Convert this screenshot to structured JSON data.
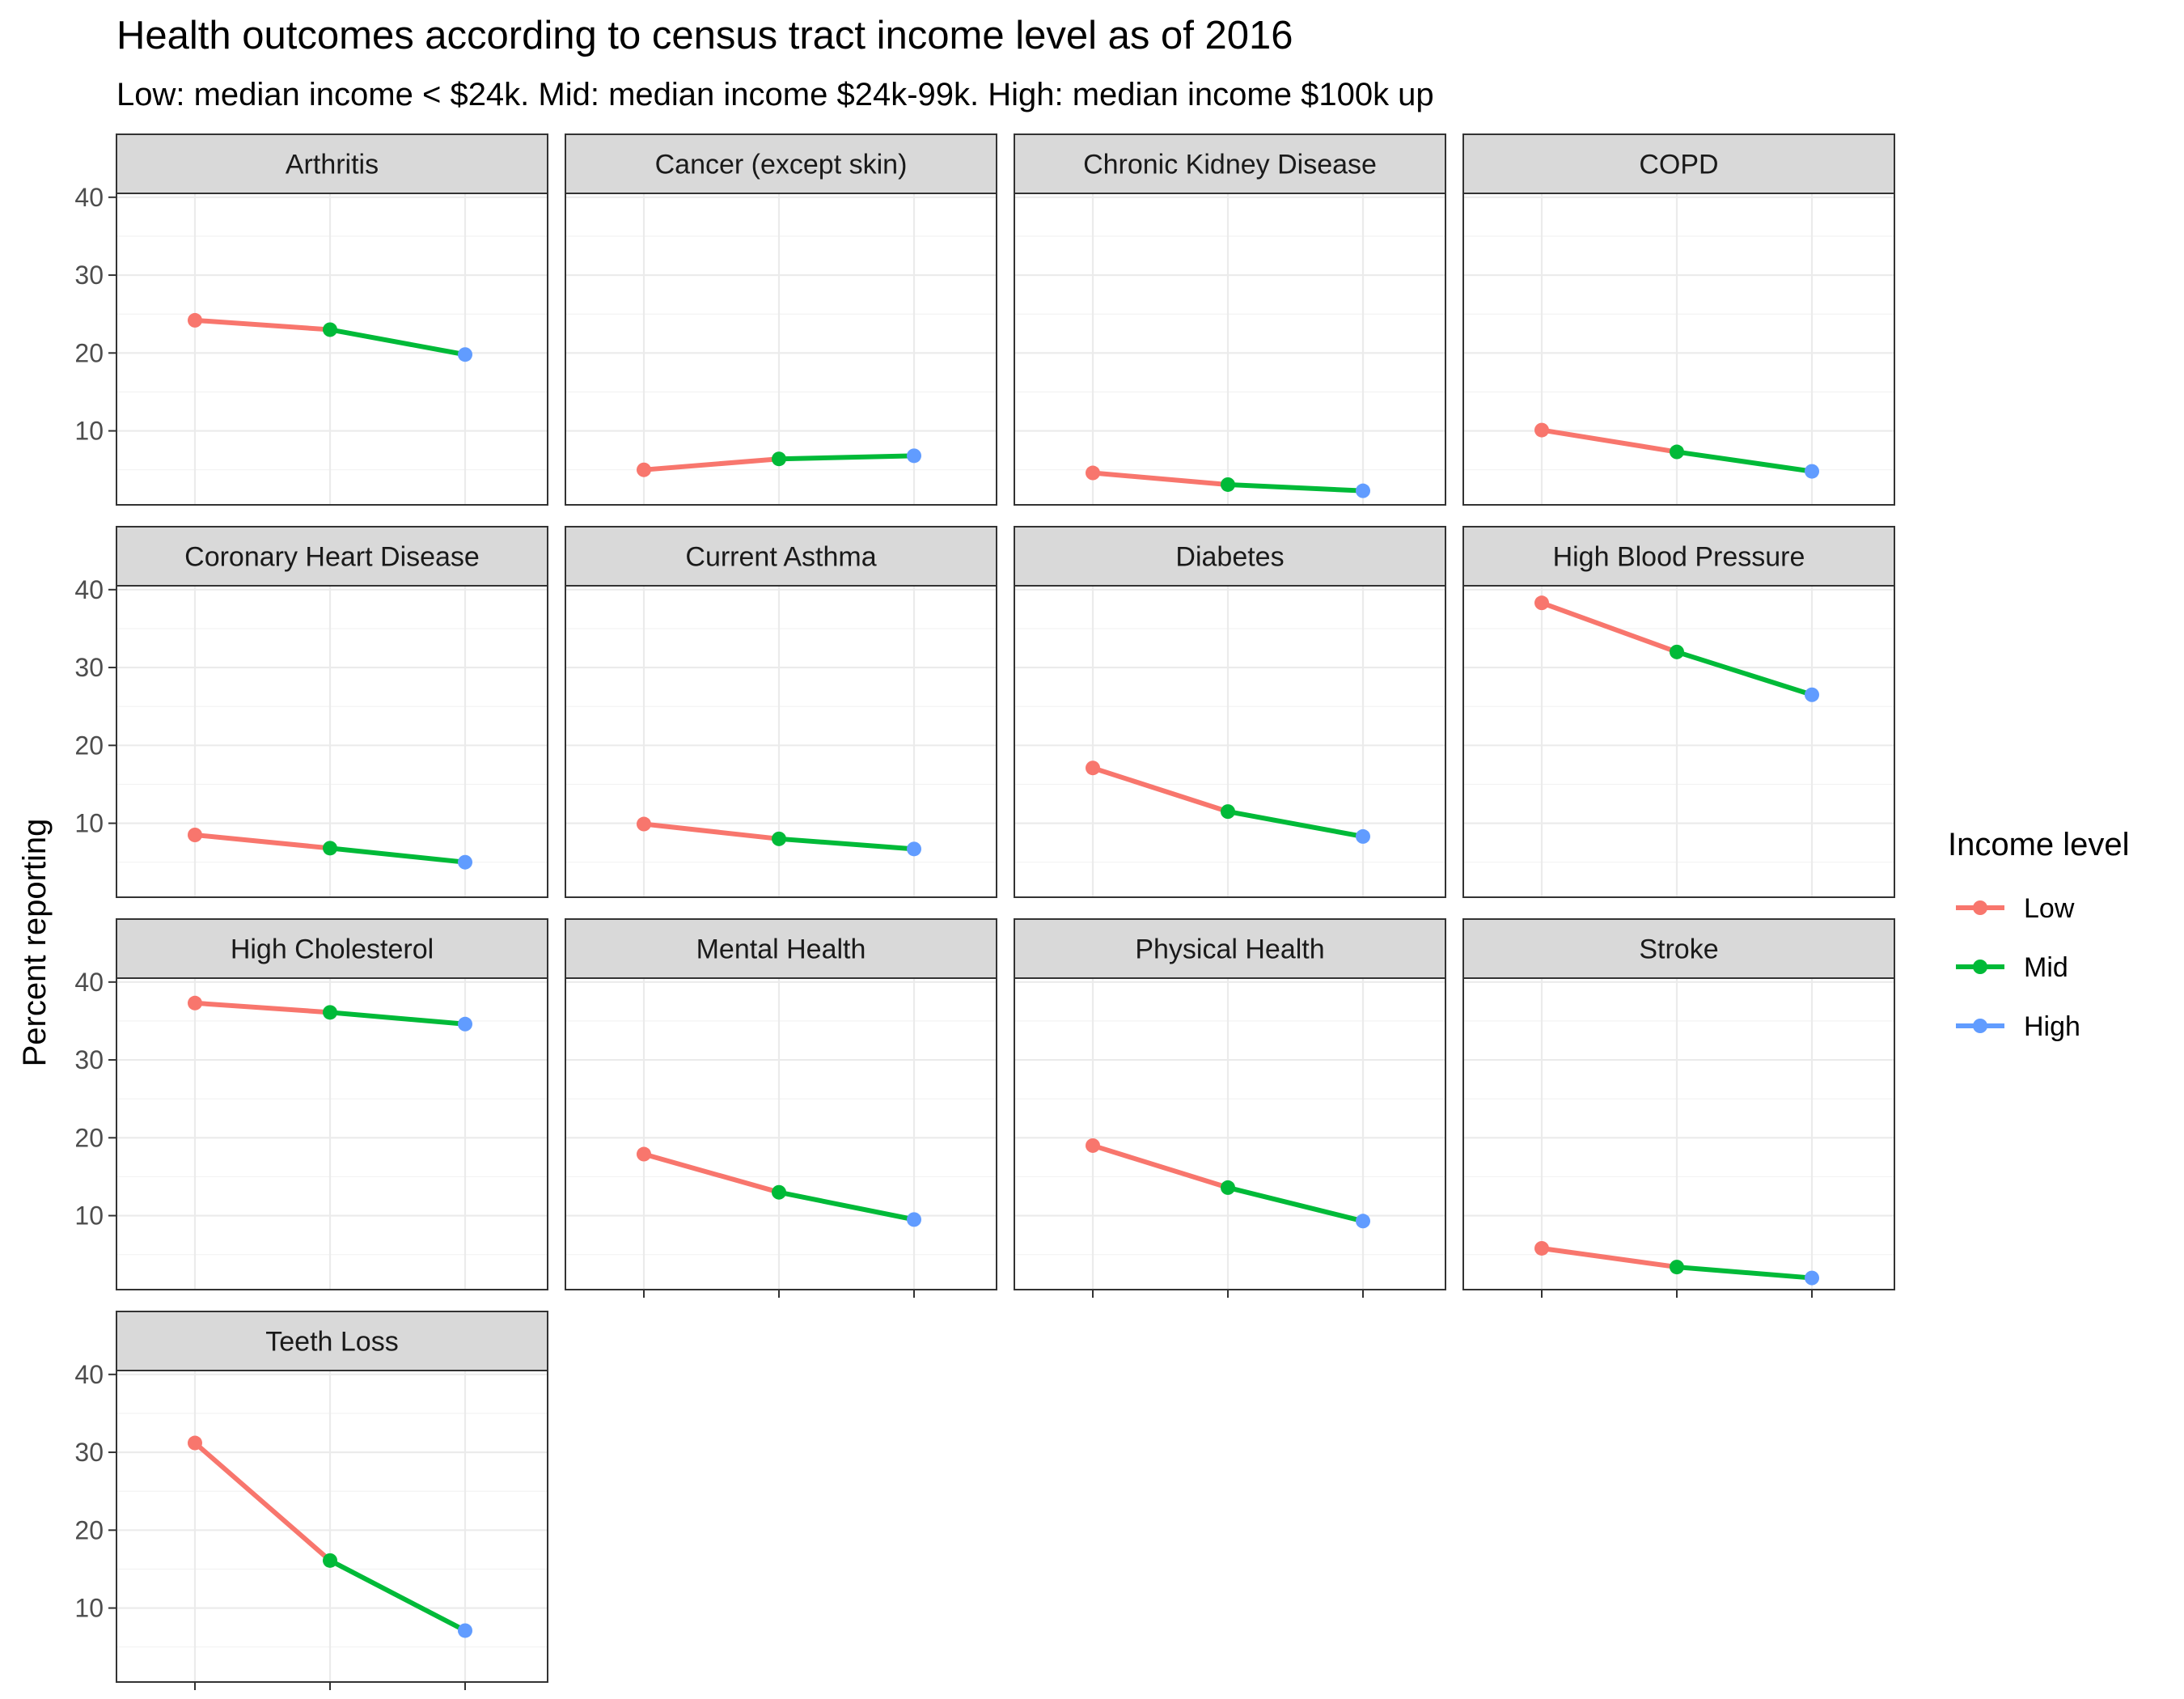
{
  "chart_data": {
    "type": "line",
    "title": "Health outcomes according to census tract income level as of 2016",
    "subtitle": "Low: median income < $24k. Mid: median income $24k-99k. High: median income $100k up",
    "ylabel": "Percent reporting",
    "xlabel": "",
    "ylim": [
      0.5,
      40.5
    ],
    "yticks": [
      10,
      20,
      30,
      40
    ],
    "grid": true,
    "categories": [
      "Low",
      "Mid",
      "High"
    ],
    "legend": {
      "title": "Income level",
      "position": "right",
      "entries": [
        {
          "label": "Low",
          "color": "#F8766D"
        },
        {
          "label": "Mid",
          "color": "#00BA38"
        },
        {
          "label": "High",
          "color": "#619CFF"
        }
      ]
    },
    "facets": [
      {
        "name": "Arthritis",
        "values": [
          24.2,
          23.0,
          19.8
        ]
      },
      {
        "name": "Cancer (except skin)",
        "values": [
          5.0,
          6.4,
          6.8
        ]
      },
      {
        "name": "Chronic Kidney Disease",
        "values": [
          4.6,
          3.1,
          2.3
        ]
      },
      {
        "name": "COPD",
        "values": [
          10.1,
          7.3,
          4.8
        ]
      },
      {
        "name": "Coronary Heart Disease",
        "values": [
          8.5,
          6.8,
          5.0
        ]
      },
      {
        "name": "Current Asthma",
        "values": [
          9.9,
          8.0,
          6.7
        ]
      },
      {
        "name": "Diabetes",
        "values": [
          17.1,
          11.5,
          8.3
        ]
      },
      {
        "name": "High Blood Pressure",
        "values": [
          38.3,
          32.0,
          26.5
        ]
      },
      {
        "name": "High Cholesterol",
        "values": [
          37.3,
          36.1,
          34.6
        ]
      },
      {
        "name": "Mental Health",
        "values": [
          17.9,
          13.0,
          9.5
        ]
      },
      {
        "name": "Physical Health",
        "values": [
          19.0,
          13.6,
          9.3
        ]
      },
      {
        "name": "Stroke",
        "values": [
          5.8,
          3.4,
          2.0
        ]
      },
      {
        "name": "Teeth Loss",
        "values": [
          31.2,
          16.1,
          7.1
        ]
      }
    ]
  }
}
